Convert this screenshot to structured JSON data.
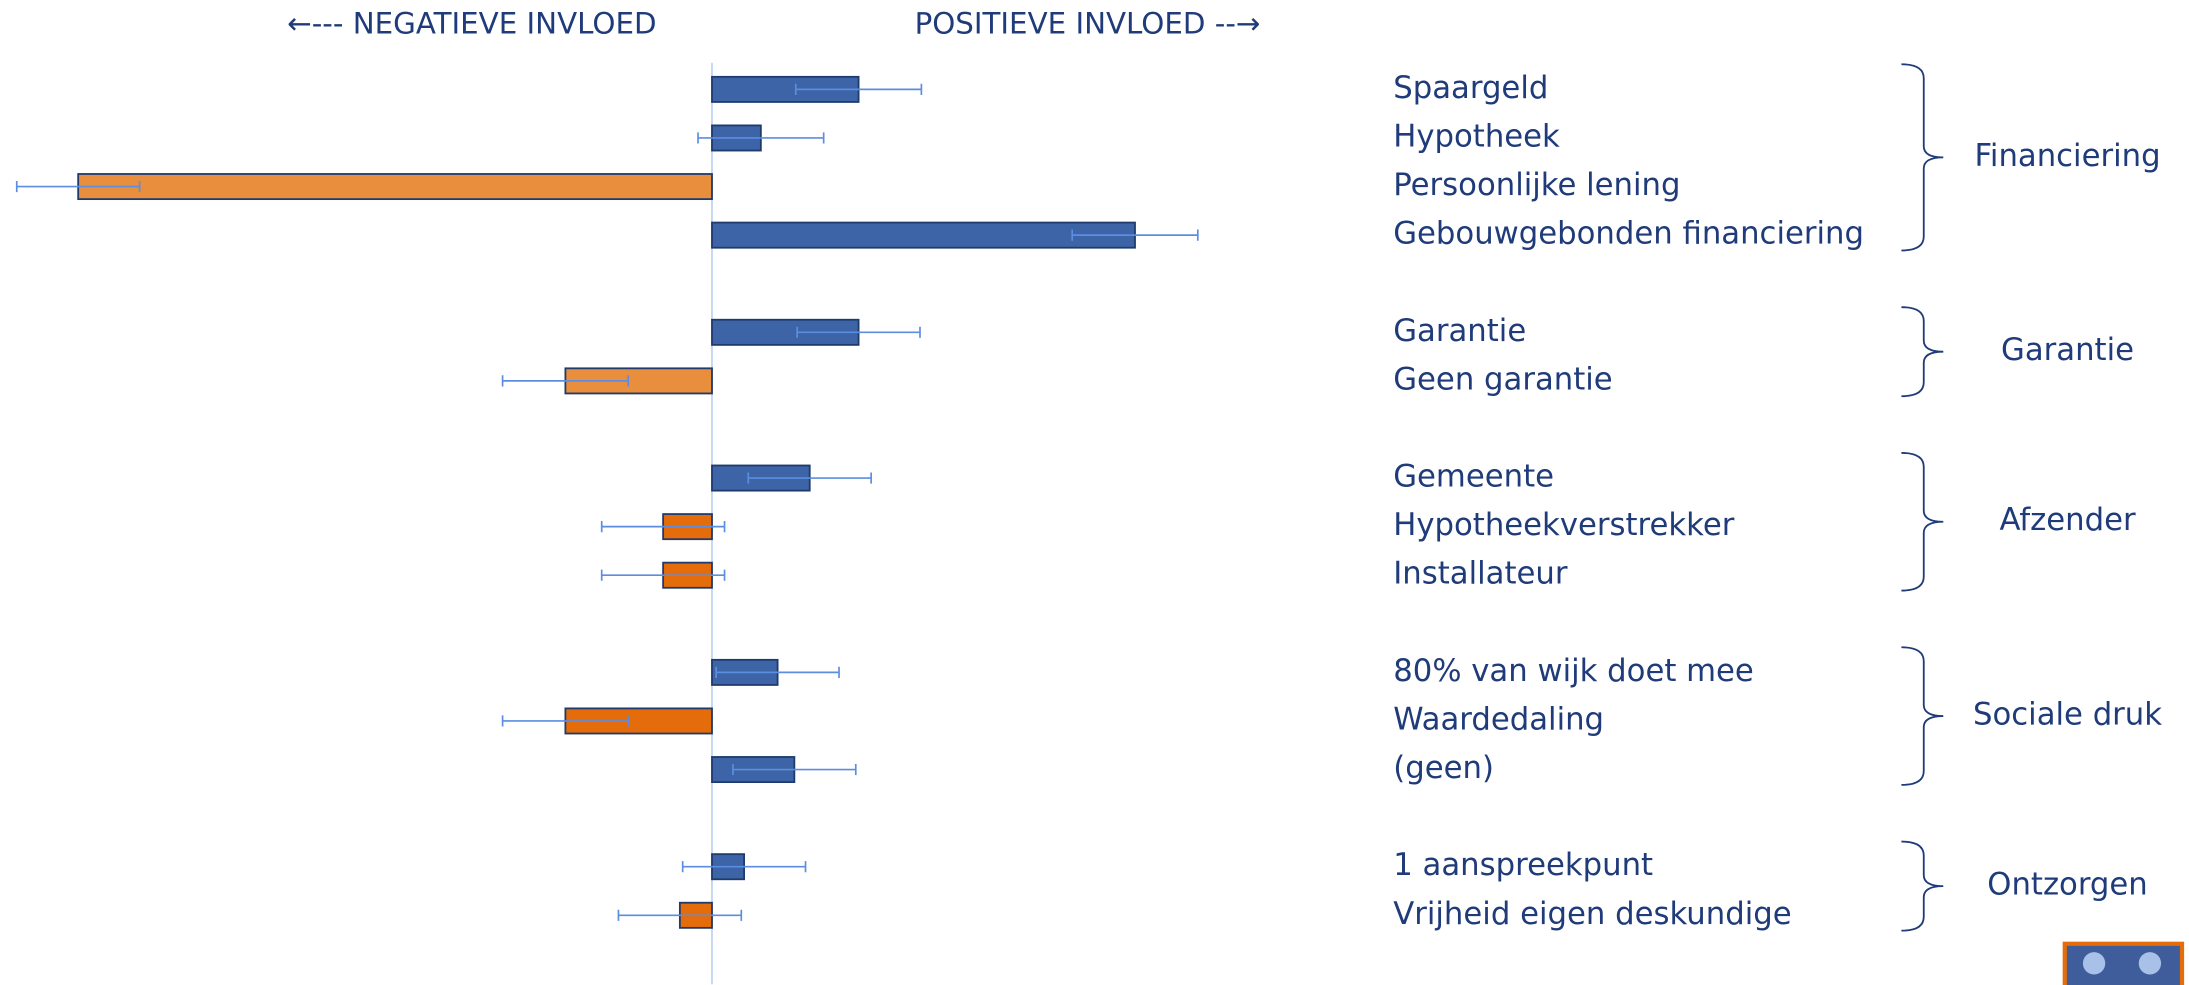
{
  "chart_data": {
    "type": "bar",
    "left_label": "←--- NEGATIEVE INVLOED",
    "right_label": "POSITIEVE INVLOED --→",
    "groups": [
      {
        "name": "Financiering",
        "categories": [
          "Spaargeld",
          "Hypotheek",
          "Persoonlijke lening",
          "Gebouwgebonden financiering"
        ],
        "values": [
          1.05,
          0.35,
          -4.54,
          3.03
        ],
        "errors": [
          0.45,
          0.45,
          0.44,
          0.45
        ],
        "colors": [
          "#3c64a6",
          "#3c64a6",
          "#e98e3d",
          "#3c64a6"
        ]
      },
      {
        "name": "Garantie",
        "categories": [
          "Garantie",
          "Geen garantie"
        ],
        "values": [
          1.05,
          -1.05
        ],
        "errors": [
          0.44,
          0.45
        ],
        "colors": [
          "#3c64a6",
          "#e98e3d"
        ]
      },
      {
        "name": "Afzender",
        "categories": [
          "Gemeente",
          "Hypotheekverstrekker",
          "Installateur"
        ],
        "values": [
          0.7,
          -0.35,
          -0.35
        ],
        "errors": [
          0.44,
          0.44,
          0.44
        ],
        "colors": [
          "#3c64a6",
          "#e46c0a",
          "#e46c0a"
        ]
      },
      {
        "name": "Sociale druk",
        "categories": [
          "80% van wijk doet mee",
          "Waardedaling",
          "(geen)"
        ],
        "values": [
          0.47,
          -1.05,
          0.59
        ],
        "errors": [
          0.44,
          0.45,
          0.44
        ],
        "colors": [
          "#3c64a6",
          "#e46c0a",
          "#3c64a6"
        ]
      },
      {
        "name": "Ontzorgen",
        "categories": [
          "1 aanspreekpunt",
          "Vrijheid eigen deskundige"
        ],
        "values": [
          0.23,
          -0.23
        ],
        "errors": [
          0.44,
          0.44
        ],
        "colors": [
          "#3c64a6",
          "#e46c0a"
        ]
      }
    ]
  }
}
